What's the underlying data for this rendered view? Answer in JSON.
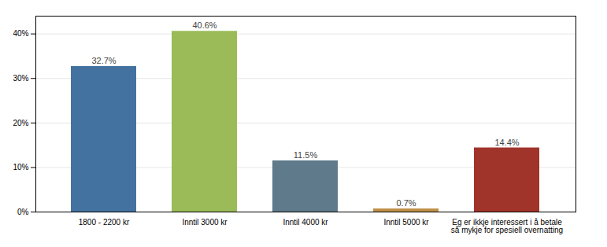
{
  "chart_data": {
    "type": "bar",
    "categories": [
      "1800 - 2200 kr",
      "Inntil 3000 kr",
      "Inntil 4000 kr",
      "Inntil 5000 kr",
      "Eg er ikkje interessert i å betale\nså mykje for spesiell overnatting"
    ],
    "values": [
      32.7,
      40.6,
      11.5,
      0.7,
      14.4
    ],
    "value_labels": [
      "32.7%",
      "40.6%",
      "11.5%",
      "0.7%",
      "14.4%"
    ],
    "data_labels": true,
    "colors": [
      "#4472A0",
      "#9BBB59",
      "#5F7A8A",
      "#C09048",
      "#A0332A"
    ],
    "ylim": [
      0,
      44
    ],
    "yticks": [
      {
        "value": 0,
        "label": "0%"
      },
      {
        "value": 10,
        "label": "10%"
      },
      {
        "value": 20,
        "label": "20%"
      },
      {
        "value": 30,
        "label": "30%"
      },
      {
        "value": 40,
        "label": "40%"
      }
    ],
    "grid": true
  }
}
